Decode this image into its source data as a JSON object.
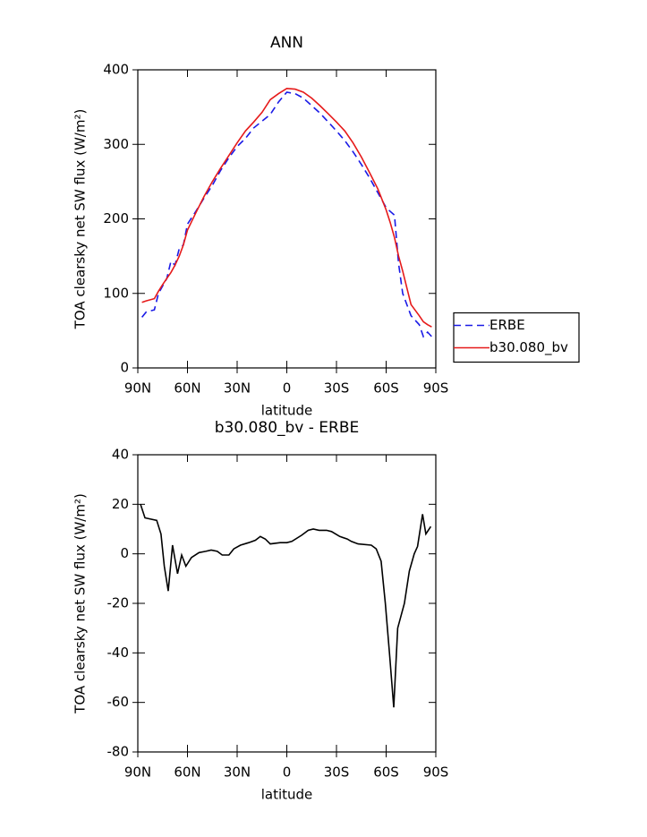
{
  "chart_data": [
    {
      "type": "line",
      "title": "ANN",
      "x_label": "latitude",
      "y_label": "TOA clearsky net SW flux (W/m²)",
      "x": [
        87.5,
        85,
        80,
        77.5,
        75,
        72.5,
        70,
        67.5,
        65,
        62.5,
        60,
        55,
        50,
        45,
        40,
        35,
        30,
        25,
        20,
        15,
        10,
        5,
        0,
        -5,
        -10,
        -15,
        -20,
        -25,
        -30,
        -35,
        -40,
        -45,
        -50,
        -55,
        -60,
        -62.5,
        -65,
        -67.5,
        -70,
        -75,
        -80,
        -82.5,
        -85,
        -87.5
      ],
      "series": [
        {
          "name": "ERBE",
          "color": "#1a1ae6",
          "line_style": "dashed",
          "values": [
            68,
            75,
            78,
            100,
            110,
            120,
            143,
            138,
            160,
            165,
            193,
            210,
            228,
            245,
            265,
            282,
            297,
            308,
            322,
            331,
            340,
            357,
            370,
            368,
            362,
            352,
            342,
            330,
            318,
            305,
            290,
            273,
            255,
            235,
            215,
            210,
            205,
            140,
            100,
            70,
            58,
            42,
            48,
            42
          ]
        },
        {
          "name": "b30.080_bv",
          "color": "#e61a1a",
          "line_style": "solid",
          "values": [
            88,
            90,
            93,
            103,
            112,
            120,
            128,
            138,
            150,
            165,
            185,
            208,
            230,
            250,
            268,
            285,
            302,
            318,
            330,
            343,
            360,
            368,
            375,
            374,
            370,
            362,
            352,
            341,
            330,
            318,
            302,
            283,
            262,
            240,
            212,
            195,
            175,
            150,
            130,
            85,
            70,
            62,
            58,
            55
          ]
        }
      ],
      "xlim": [
        90,
        -90
      ],
      "xticks": [
        {
          "value": 90,
          "label": "90N"
        },
        {
          "value": 60,
          "label": "60N"
        },
        {
          "value": 30,
          "label": "30N"
        },
        0,
        {
          "value": -30,
          "label": "30S"
        },
        {
          "value": -60,
          "label": "60S"
        },
        {
          "value": -90,
          "label": "90S"
        }
      ],
      "ylim": [
        0,
        400
      ],
      "yticks": [
        0,
        100,
        200,
        300,
        400
      ],
      "legend": "right"
    },
    {
      "type": "line",
      "title": "b30.080_bv - ERBE",
      "x_label": "latitude",
      "y_label": "TOA clearsky net SW flux (W/m²)",
      "x": [
        88.4,
        85.7,
        78.6,
        76,
        74,
        71.6,
        69,
        66,
        63.5,
        61,
        57.6,
        53,
        49,
        45.7,
        42,
        39,
        35,
        32,
        28,
        23,
        19,
        16,
        13,
        10,
        4,
        0,
        -3,
        -9,
        -13,
        -16,
        -19.5,
        -24,
        -27,
        -32,
        -36.5,
        -39,
        -43,
        -51,
        -54,
        -57,
        -59.5,
        -62,
        -64.6,
        -67,
        -71,
        -74,
        -77,
        -79,
        -82,
        -84,
        -87
      ],
      "series": [
        {
          "color": "#000000",
          "line_style": "solid",
          "values": [
            20,
            14.5,
            13.5,
            8,
            -5,
            -15,
            3.5,
            -8,
            -0.5,
            -5,
            -1.5,
            0.5,
            1,
            1.5,
            1,
            -0.5,
            -0.5,
            2,
            3.5,
            4.5,
            5.5,
            7,
            6,
            4,
            4.5,
            4.5,
            5,
            7.5,
            9.5,
            10,
            9.5,
            9.5,
            9,
            7,
            6,
            5,
            4,
            3.5,
            2,
            -3,
            -20,
            -40,
            -62,
            -30,
            -20,
            -7,
            0,
            3,
            16,
            8,
            11
          ]
        }
      ],
      "xlim": [
        90,
        -90
      ],
      "xticks": [
        {
          "value": 90,
          "label": "90N"
        },
        {
          "value": 60,
          "label": "60N"
        },
        {
          "value": 30,
          "label": "30N"
        },
        0,
        {
          "value": -30,
          "label": "30S"
        },
        {
          "value": -60,
          "label": "60S"
        },
        {
          "value": -90,
          "label": "90S"
        }
      ],
      "ylim": [
        -80,
        40
      ],
      "yticks": [
        -80,
        -60,
        -40,
        -20,
        0,
        20,
        40
      ]
    }
  ]
}
